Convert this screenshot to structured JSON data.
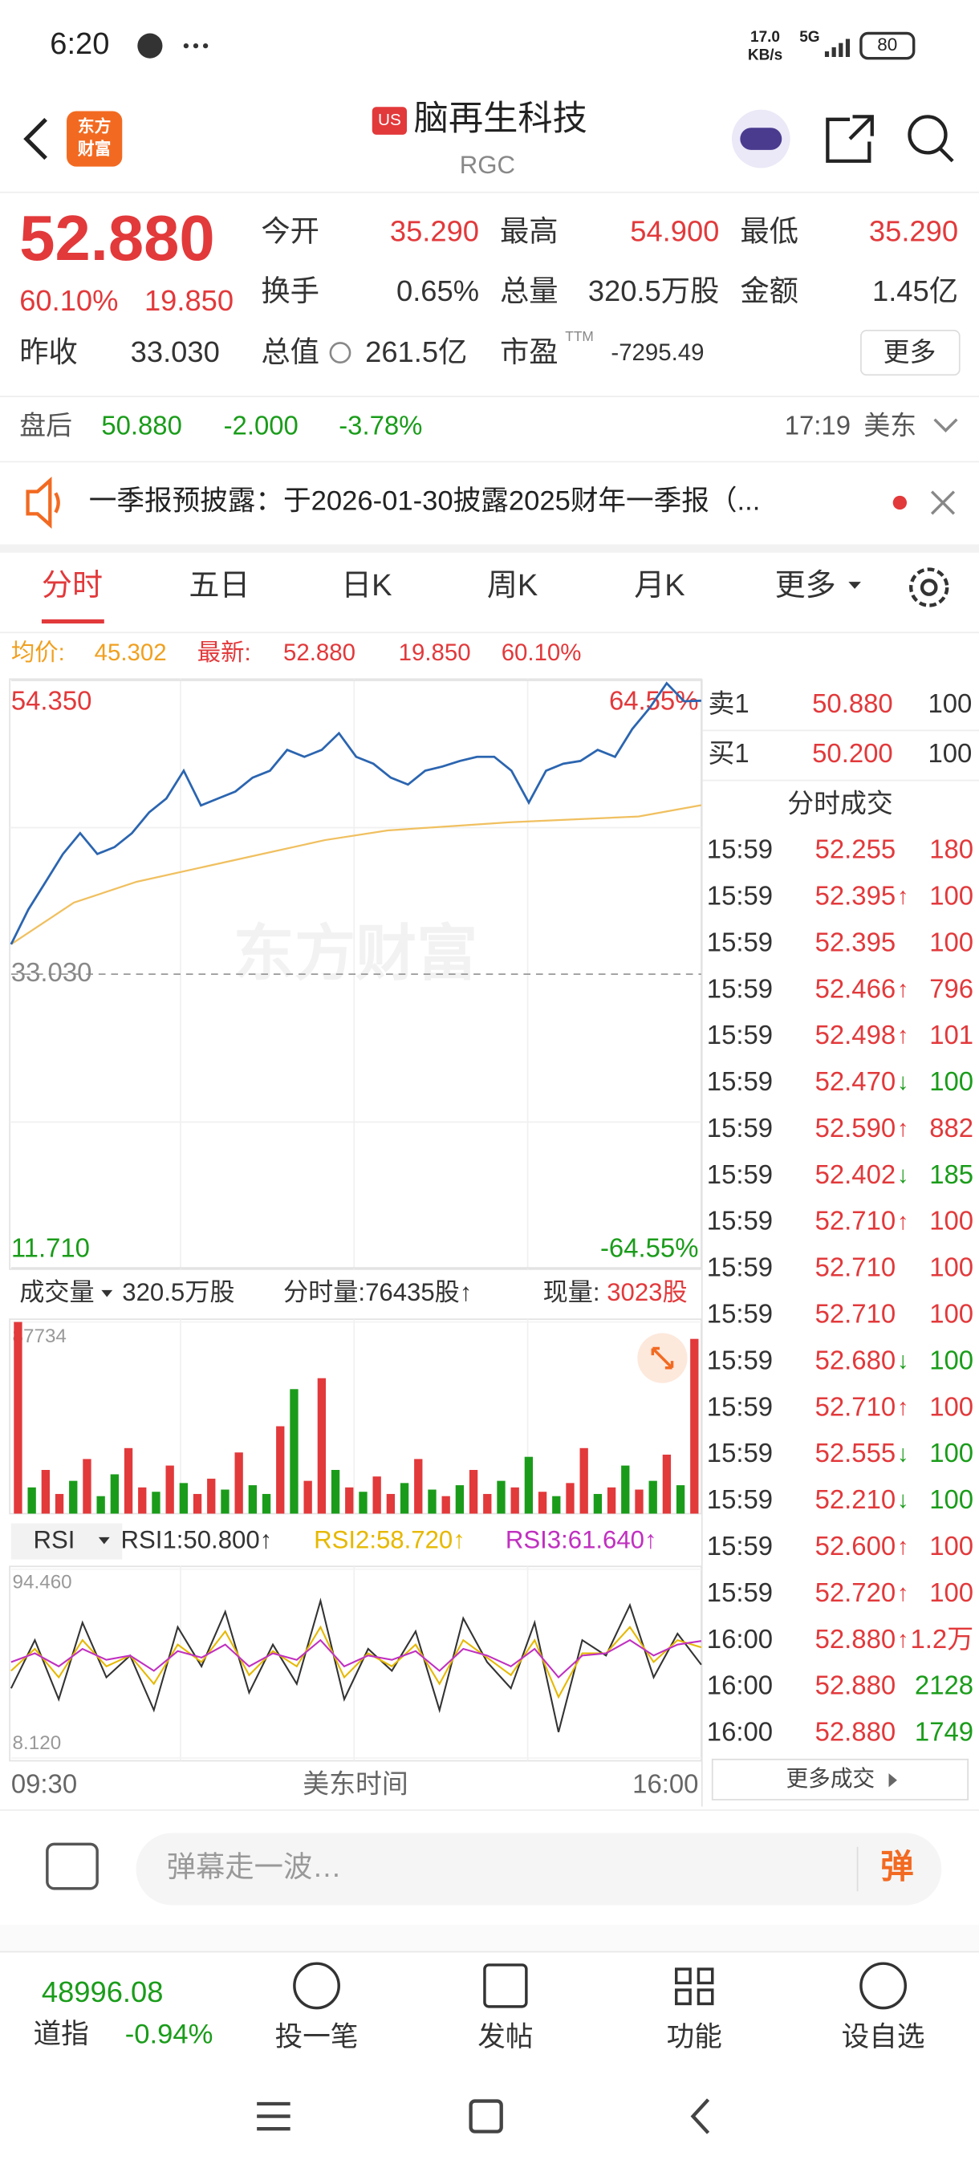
{
  "status_bar": {
    "time": "6:20",
    "speed": "17.0",
    "speed_unit": "KB/s",
    "network": "5G",
    "battery": "80"
  },
  "header": {
    "logo": [
      "东方",
      "财富"
    ],
    "badge": "US",
    "title": "脑再生科技",
    "ticker": "RGC"
  },
  "quote": {
    "price": "52.880",
    "change_pct": "60.10%",
    "change": "19.850",
    "fields": [
      [
        "今开",
        "35.290"
      ],
      [
        "最高",
        "54.900"
      ],
      [
        "最低",
        "35.290"
      ],
      [
        "换手",
        "0.65%"
      ],
      [
        "总量",
        "320.5万股"
      ],
      [
        "金额",
        "1.45亿"
      ]
    ],
    "prev_close": [
      "昨收",
      "33.030"
    ],
    "market_cap": [
      "总值",
      "261.5亿"
    ],
    "pe": [
      "市盈",
      "TTM",
      "-7295.49"
    ],
    "more": "更多"
  },
  "after_hours": {
    "label": "盘后",
    "price": "50.880",
    "change": "-2.000",
    "change_pct": "-3.78%",
    "time": "17:19",
    "market": "美东"
  },
  "notice": "一季报预披露：于2026-01-30披露2025财年一季报（...",
  "tabs": [
    "分时",
    "五日",
    "日K",
    "周K",
    "月K",
    "更多"
  ],
  "summary": {
    "avg_label": "均价:",
    "avg": "45.302",
    "latest_label": "最新:",
    "latest": "52.880",
    "change": "19.850",
    "change_pct": "60.10%"
  },
  "price_chart": {
    "watermark": "东方财富",
    "ylim": [
      11.71,
      54.35
    ],
    "yticks": [
      {
        "value": 11.71,
        "label": "11.710"
      },
      {
        "value": 33.03,
        "label": "33.030"
      },
      {
        "value": 54.35,
        "label": "54.350"
      }
    ],
    "pct_labels": [
      "64.55%",
      "-64.55%"
    ],
    "series": [
      {
        "color": "#2b65b0",
        "values": [
          35.2,
          37.72,
          39.73,
          41.75,
          43.26,
          41.75,
          42.25,
          43.26,
          44.77,
          45.78,
          47.8,
          45.28,
          45.78,
          46.29,
          47.29,
          47.8,
          49.31,
          48.81,
          49.31,
          50.52,
          48.81,
          48.3,
          47.29,
          46.79,
          47.8,
          48.1,
          48.5,
          48.81,
          48.81,
          47.8,
          45.48,
          47.8,
          48.3,
          48.5,
          49.31,
          48.81,
          50.82,
          52.33,
          54.15,
          52.84,
          52.88
        ]
      },
      {
        "color": "#f0c060",
        "values": [
          35.2,
          38.22,
          39.73,
          40.74,
          41.75,
          42.76,
          43.46,
          43.77,
          44.07,
          44.27,
          44.47,
          45.3
        ]
      }
    ]
  },
  "volume_chart": {
    "label": "成交量",
    "total": "320.5万股",
    "period": "分时量:76435股↑",
    "current_label": "现量:",
    "current": "3023股",
    "ylim": [
      0,
      87734
    ],
    "yticks": [
      87734
    ],
    "values": [
      87734,
      12000,
      20000,
      9000,
      15000,
      25000,
      8000,
      18000,
      30000,
      12000,
      10000,
      22000,
      14000,
      9000,
      16000,
      11000,
      28000,
      13000,
      9000,
      40000,
      57000,
      15000,
      62000,
      20000,
      12000,
      10000,
      17000,
      9000,
      14000,
      25000,
      11000,
      8000,
      13000,
      20000,
      9000,
      15000,
      12000,
      26000,
      10000,
      8000,
      14000,
      30000,
      9000,
      12000,
      22000,
      11000,
      15000,
      27000,
      13000,
      80000
    ],
    "up": [
      true,
      false,
      true,
      true,
      false,
      true,
      false,
      false,
      true,
      true,
      false,
      true,
      false,
      true,
      true,
      false,
      true,
      false,
      false,
      true,
      false,
      true,
      true,
      false,
      true,
      false,
      true,
      true,
      false,
      true,
      false,
      true,
      false,
      true,
      true,
      false,
      true,
      false,
      true,
      false,
      true,
      true,
      false,
      true,
      false,
      true,
      false,
      true,
      false,
      true
    ]
  },
  "rsi_chart": {
    "label": "RSI",
    "ylim": [
      8.12,
      94.46
    ],
    "yticks": [
      {
        "value": 8.12,
        "label": "8.120"
      },
      {
        "value": 94.46,
        "label": "94.460"
      }
    ],
    "series": [
      {
        "name": "RSI1:50.800↑",
        "color": "#333333",
        "values": [
          40,
          62,
          35,
          70,
          45,
          55,
          30,
          68,
          50,
          75,
          38,
          60,
          42,
          80,
          35,
          58,
          48,
          66,
          30,
          72,
          52,
          40,
          70,
          20,
          62,
          55,
          78,
          45,
          65,
          50.8
        ]
      },
      {
        "name": "RSI2:58.720↑",
        "color": "#e6b800",
        "values": [
          48,
          58,
          45,
          62,
          50,
          55,
          42,
          60,
          52,
          66,
          46,
          57,
          50,
          68,
          45,
          56,
          50,
          60,
          42,
          62,
          54,
          46,
          62,
          36,
          56,
          56,
          68,
          52,
          62,
          58.72
        ]
      },
      {
        "name": "RSI3:61.640↑",
        "color": "#c030c0",
        "values": [
          52,
          56,
          50,
          58,
          53,
          55,
          48,
          57,
          54,
          60,
          50,
          56,
          53,
          62,
          50,
          55,
          53,
          57,
          48,
          58,
          55,
          50,
          58,
          45,
          55,
          56,
          62,
          55,
          60,
          61.64
        ]
      }
    ]
  },
  "x_axis": [
    "09:30",
    "美东时间",
    "16:00"
  ],
  "order_book": {
    "rows": [
      [
        "卖1",
        "50.880",
        "100"
      ],
      [
        "买1",
        "50.200",
        "100"
      ]
    ],
    "trades_title": "分时成交",
    "trades": [
      {
        "time": "15:59",
        "price": "52.255",
        "volume": "180",
        "volume_color": "#e2393b"
      },
      {
        "time": "15:59",
        "price": "52.395",
        "arrow": "↑",
        "volume": "100",
        "volume_color": "#e2393b"
      },
      {
        "time": "15:59",
        "price": "52.395",
        "volume": "100",
        "volume_color": "#e2393b"
      },
      {
        "time": "15:59",
        "price": "52.466",
        "arrow": "↑",
        "volume": "796",
        "volume_color": "#e2393b"
      },
      {
        "time": "15:59",
        "price": "52.498",
        "arrow": "↑",
        "volume": "101",
        "volume_color": "#e2393b"
      },
      {
        "time": "15:59",
        "price": "52.470",
        "arrow": "↓",
        "volume": "100",
        "volume_color": "#1a9c1a"
      },
      {
        "time": "15:59",
        "price": "52.590",
        "arrow": "↑",
        "volume": "882",
        "volume_color": "#e2393b"
      },
      {
        "time": "15:59",
        "price": "52.402",
        "arrow": "↓",
        "volume": "185",
        "volume_color": "#1a9c1a"
      },
      {
        "time": "15:59",
        "price": "52.710",
        "arrow": "↑",
        "volume": "100",
        "volume_color": "#e2393b"
      },
      {
        "time": "15:59",
        "price": "52.710",
        "volume": "100",
        "volume_color": "#e2393b"
      },
      {
        "time": "15:59",
        "price": "52.710",
        "volume": "100",
        "volume_color": "#e2393b"
      },
      {
        "time": "15:59",
        "price": "52.680",
        "arrow": "↓",
        "volume": "100",
        "volume_color": "#1a9c1a"
      },
      {
        "time": "15:59",
        "price": "52.710",
        "arrow": "↑",
        "volume": "100",
        "volume_color": "#e2393b"
      },
      {
        "time": "15:59",
        "price": "52.555",
        "arrow": "↓",
        "volume": "100",
        "volume_color": "#1a9c1a"
      },
      {
        "time": "15:59",
        "price": "52.210",
        "arrow": "↓",
        "volume": "100",
        "volume_color": "#1a9c1a"
      },
      {
        "time": "15:59",
        "price": "52.600",
        "arrow": "↑",
        "volume": "100",
        "volume_color": "#e2393b"
      },
      {
        "time": "15:59",
        "price": "52.720",
        "arrow": "↑",
        "volume": "100",
        "volume_color": "#e2393b"
      },
      {
        "time": "16:00",
        "price": "52.880",
        "arrow": "↑",
        "volume": "1.2万",
        "volume_color": "#e2393b"
      },
      {
        "time": "16:00",
        "price": "52.880",
        "volume": "2128",
        "volume_color": "#1a9c1a"
      },
      {
        "time": "16:00",
        "price": "52.880",
        "volume": "1749",
        "volume_color": "#1a9c1a"
      }
    ],
    "more": "更多成交"
  },
  "comment": {
    "placeholder": "弹幕走一波…",
    "button": "弹"
  },
  "bottom_bar": {
    "index_value": "48996.08",
    "index_name": "道指",
    "index_change": "-0.94%",
    "buttons": [
      "投一笔",
      "发帖",
      "功能",
      "设自选"
    ]
  }
}
